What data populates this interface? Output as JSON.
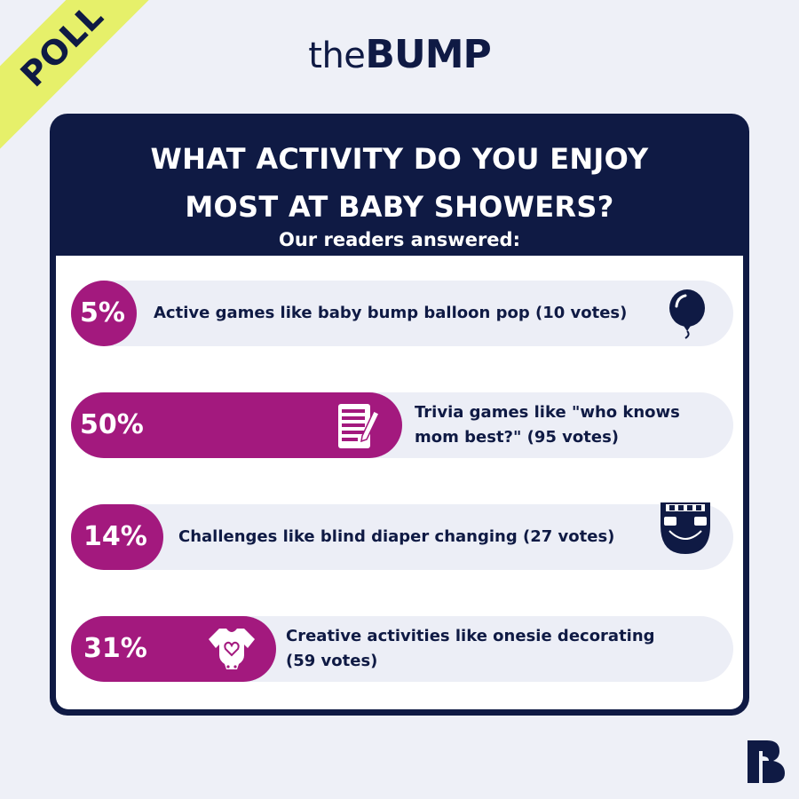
{
  "ribbon": "POLL",
  "logo": {
    "the": "the",
    "bump": "BUMP"
  },
  "question_line1": "WHAT ACTIVITY DO YOU ENJOY",
  "question_line2": "MOST AT BABY SHOWERS?",
  "subtitle": "Our readers answered:",
  "colors": {
    "navy": "#0f1a44",
    "magenta": "#a3197e",
    "ribbon": "#e6f06a",
    "row": "#eceef6"
  },
  "chart_data": {
    "type": "bar",
    "categories": [
      "Active games like baby bump balloon pop (10 votes)",
      "Trivia games like \"who knows mom best?\" (95 votes)",
      "Challenges like blind diaper changing (27 votes)",
      "Creative activities like onesie decorating (59 votes)"
    ],
    "values": [
      5,
      50,
      14,
      31
    ],
    "value_labels": [
      "5%",
      "50%",
      "14%",
      "31%"
    ],
    "votes": [
      10,
      95,
      27,
      59
    ],
    "icons": [
      "balloon-icon",
      "trivia-sheet-icon",
      "diaper-icon",
      "onesie-icon"
    ]
  },
  "rows": [
    {
      "pct": "5%",
      "label_lines": [
        "Active games like baby bump balloon pop (10 votes)"
      ]
    },
    {
      "pct": "50%",
      "label_lines": [
        "Trivia games like \"who knows",
        "mom best?\" (95 votes)"
      ]
    },
    {
      "pct": "14%",
      "label_lines": [
        "Challenges like blind diaper changing (27 votes)"
      ]
    },
    {
      "pct": "31%",
      "label_lines": [
        "Creative activities like onesie decorating",
        "(59 votes)"
      ]
    }
  ]
}
